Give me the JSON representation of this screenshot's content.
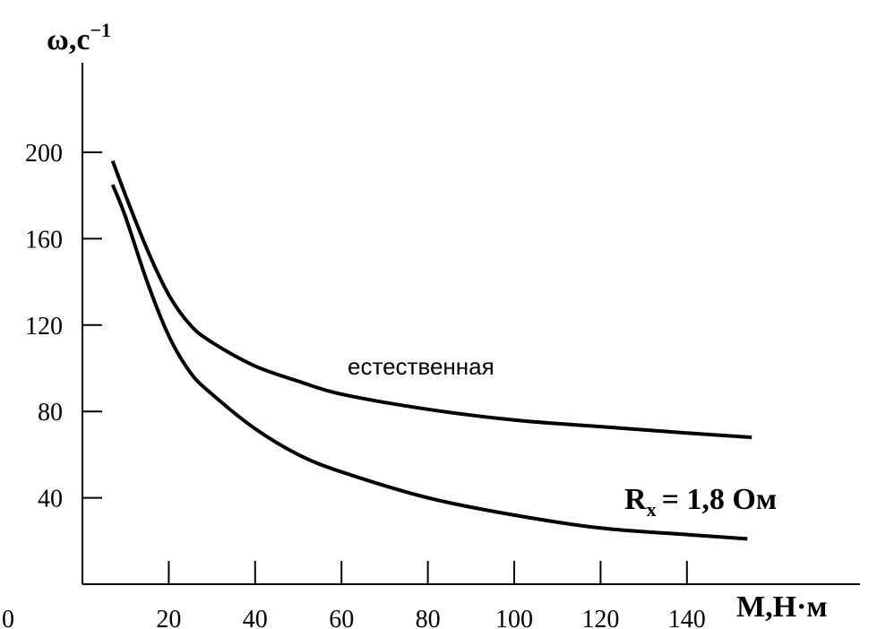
{
  "chart_data": {
    "type": "line",
    "ylabel": "ω,c",
    "ylabel_superscript": "−1",
    "xlabel": "M,H·м",
    "xlim": [
      0,
      160
    ],
    "ylim": [
      0,
      200
    ],
    "x_ticks": [
      20,
      40,
      60,
      80,
      100,
      120,
      140
    ],
    "x_tick_labels": [
      "20",
      "40",
      "60",
      "80",
      "100",
      "120",
      "140"
    ],
    "y_ticks": [
      40,
      80,
      120,
      160,
      200
    ],
    "y_tick_labels": [
      "40",
      "80",
      "120",
      "160",
      "200"
    ],
    "origin_label": "0",
    "grid": false,
    "series": [
      {
        "name": "естественная",
        "x": [
          7,
          10,
          15,
          20,
          25,
          30,
          40,
          50,
          60,
          80,
          100,
          120,
          140,
          155
        ],
        "y": [
          196,
          180,
          155,
          134,
          120,
          112,
          101,
          94,
          88,
          81,
          76,
          73,
          70,
          68
        ]
      },
      {
        "name": "R",
        "x": [
          7,
          10,
          15,
          20,
          25,
          30,
          40,
          50,
          60,
          80,
          100,
          120,
          140,
          154
        ],
        "y": [
          185,
          170,
          140,
          115,
          98,
          88,
          72,
          60,
          52,
          40,
          32,
          26,
          23,
          21
        ]
      }
    ],
    "annotations": {
      "natural": "естественная",
      "rx_main": "R",
      "rx_sub": "x",
      "rx_value": "= 1,8 Ом"
    }
  }
}
